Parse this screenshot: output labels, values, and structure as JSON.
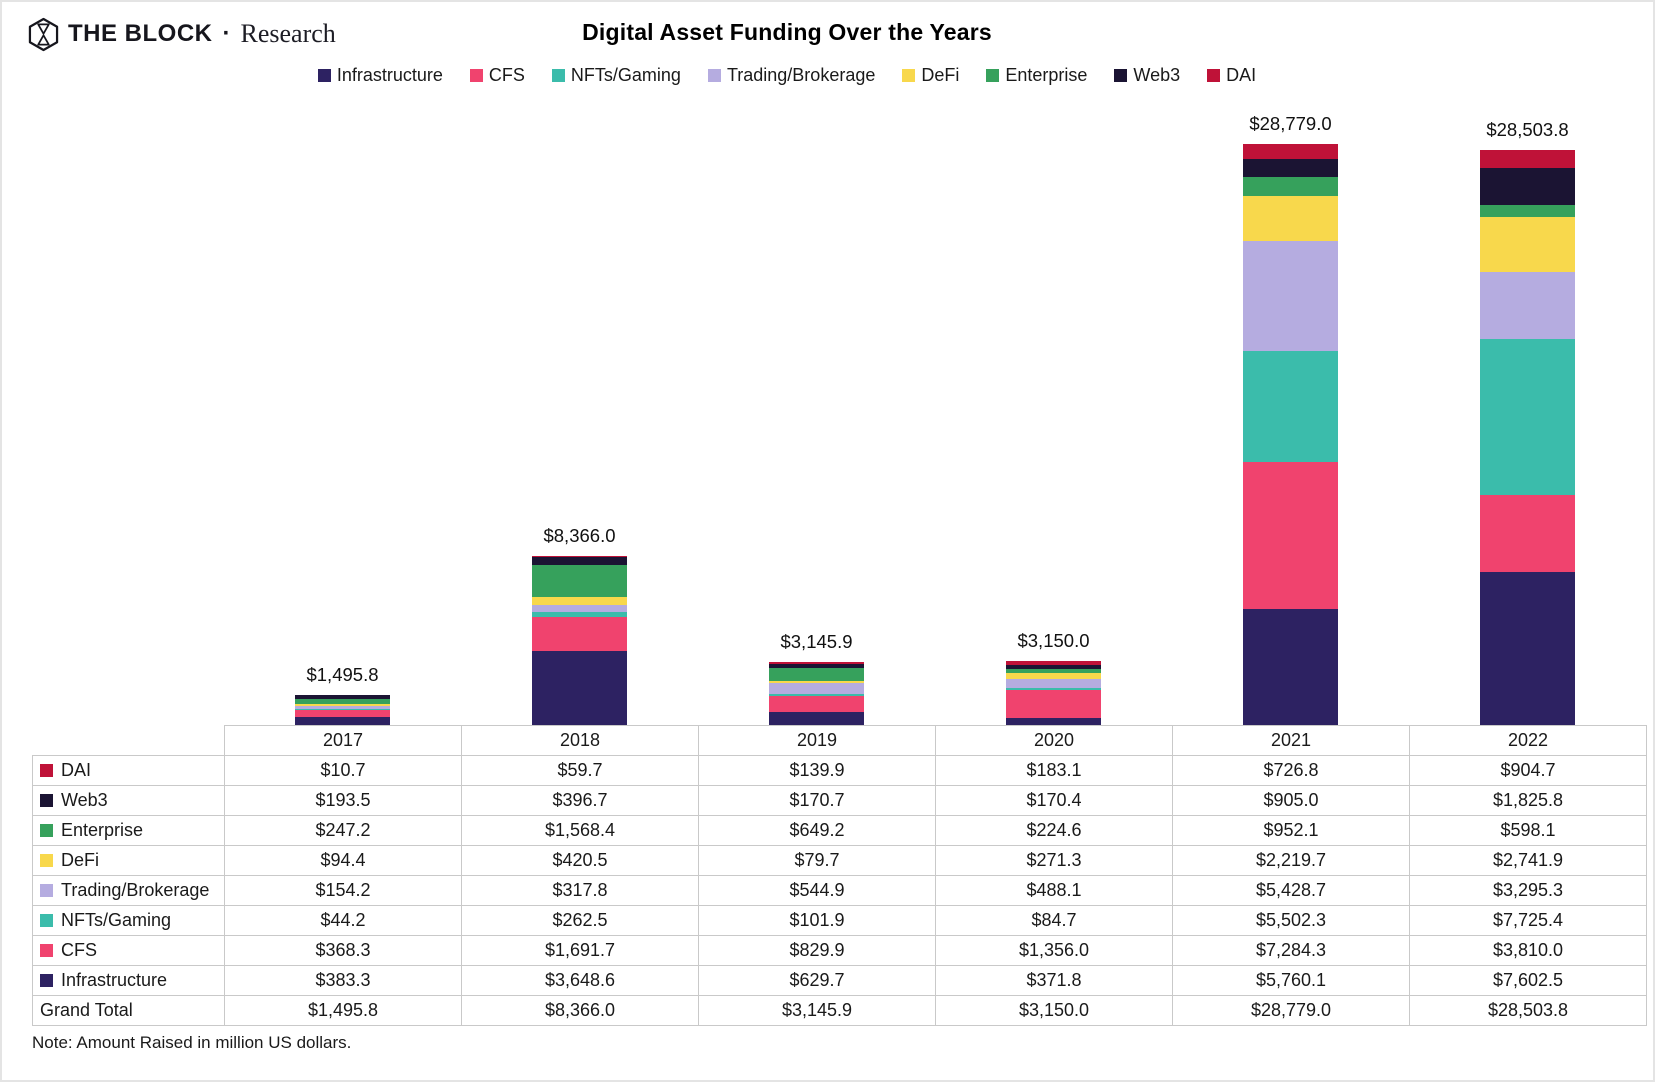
{
  "header": {
    "brand": "THE BLOCK",
    "brand_separator": "·",
    "brand_sub": "Research",
    "title": "Digital Asset Funding Over the Years"
  },
  "chart_data": {
    "type": "bar",
    "subtype": "stacked-vertical",
    "title": "Digital Asset Funding Over the Years",
    "categories": [
      "2017",
      "2018",
      "2019",
      "2020",
      "2021",
      "2022"
    ],
    "series": [
      {
        "name": "Infrastructure",
        "color": "#2d2262",
        "values": [
          383.3,
          3648.6,
          629.7,
          371.8,
          5760.1,
          7602.5
        ]
      },
      {
        "name": "CFS",
        "color": "#f0436e",
        "values": [
          368.3,
          1691.7,
          829.9,
          1356.0,
          7284.3,
          3810.0
        ]
      },
      {
        "name": "NFTs/Gaming",
        "color": "#3bbcab",
        "values": [
          44.2,
          262.5,
          101.9,
          84.7,
          5502.3,
          7725.4
        ]
      },
      {
        "name": "Trading/Brokerage",
        "color": "#b5ace0",
        "values": [
          154.2,
          317.8,
          544.9,
          488.1,
          5428.7,
          3295.3
        ]
      },
      {
        "name": "DeFi",
        "color": "#f8d84c",
        "values": [
          94.4,
          420.5,
          79.7,
          271.3,
          2219.7,
          2741.9
        ]
      },
      {
        "name": "Enterprise",
        "color": "#36a15c",
        "values": [
          247.2,
          1568.4,
          649.2,
          224.6,
          952.1,
          598.1
        ]
      },
      {
        "name": "Web3",
        "color": "#1b1433",
        "values": [
          193.5,
          396.7,
          170.7,
          170.4,
          905.0,
          1825.8
        ]
      },
      {
        "name": "DAI",
        "color": "#bf1238",
        "values": [
          10.7,
          59.7,
          139.9,
          183.1,
          726.8,
          904.7
        ]
      }
    ],
    "totals": [
      1495.8,
      8366.0,
      3145.9,
      3150.0,
      28779.0,
      28503.8
    ],
    "legend_order": [
      "Infrastructure",
      "CFS",
      "NFTs/Gaming",
      "Trading/Brokerage",
      "DeFi",
      "Enterprise",
      "Web3",
      "DAI"
    ],
    "stack_order_bottom_to_top": [
      "Infrastructure",
      "CFS",
      "NFTs/Gaming",
      "Trading/Brokerage",
      "DeFi",
      "Enterprise",
      "Web3",
      "DAI"
    ],
    "table_row_order_top_to_bottom": [
      "DAI",
      "Web3",
      "Enterprise",
      "DeFi",
      "Trading/Brokerage",
      "NFTs/Gaming",
      "CFS",
      "Infrastructure"
    ],
    "grand_total_label": "Grand Total",
    "value_prefix": "$",
    "value_unit": "million US dollars",
    "ylim": [
      0,
      29100
    ],
    "gridlines": false,
    "legend_position": "top"
  },
  "note": "Note: Amount Raised in million US dollars."
}
